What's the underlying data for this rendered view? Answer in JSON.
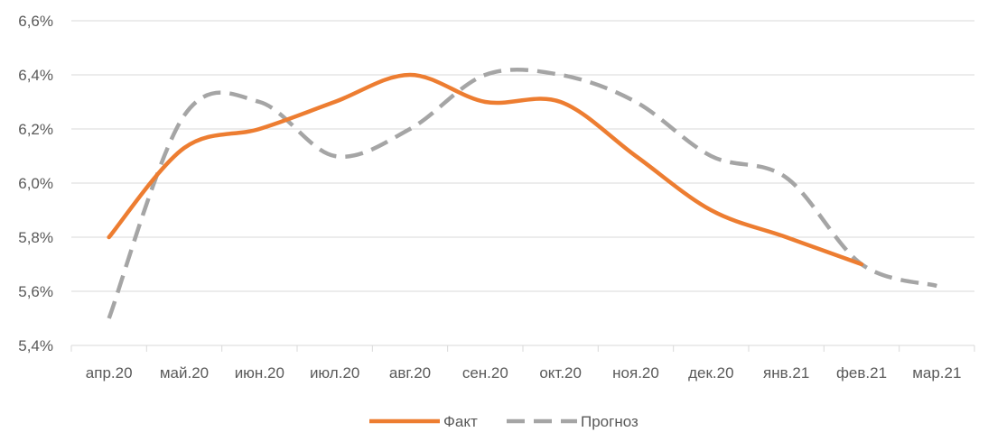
{
  "chart_data": {
    "type": "line",
    "categories": [
      "апр.20",
      "май.20",
      "июн.20",
      "июл.20",
      "авг.20",
      "сен.20",
      "окт.20",
      "ноя.20",
      "дек.20",
      "янв.21",
      "фев.21",
      "мар.21"
    ],
    "y_ticks": [
      "5,4%",
      "5,6%",
      "5,8%",
      "6,0%",
      "6,2%",
      "6,4%",
      "6,6%"
    ],
    "ylim": [
      5.4,
      6.6
    ],
    "grid": true,
    "legend_position": "bottom",
    "series": [
      {
        "name": "Факт",
        "color": "#ED7D31",
        "style": "solid",
        "values": [
          5.8,
          6.13,
          6.2,
          6.3,
          6.4,
          6.3,
          6.3,
          6.1,
          5.9,
          5.8,
          5.7,
          null
        ]
      },
      {
        "name": "Прогноз",
        "color": "#A5A5A5",
        "style": "dashed",
        "values": [
          5.5,
          6.25,
          6.3,
          6.1,
          6.2,
          6.4,
          6.4,
          6.3,
          6.1,
          6.02,
          5.7,
          5.62
        ]
      }
    ]
  }
}
